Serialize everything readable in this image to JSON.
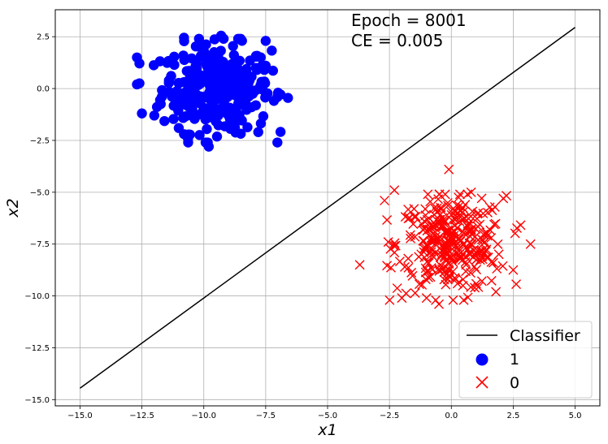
{
  "chart_data": {
    "type": "scatter",
    "title": "",
    "xlabel": "x1",
    "ylabel": "x2",
    "xlim": [
      -16.0,
      6.0
    ],
    "ylim": [
      -15.3,
      3.8
    ],
    "grid": true,
    "legend_position": "bottom-right",
    "xticks": [
      -15.0,
      -12.5,
      -10.0,
      -7.5,
      -5.0,
      -2.5,
      0.0,
      2.5,
      5.0
    ],
    "xtick_labels": [
      "-15.0",
      "-12.5",
      "-10.0",
      "-7.5",
      "-5.0",
      "-2.5",
      "0.0",
      "2.5",
      "5.0"
    ],
    "yticks": [
      2.5,
      0.0,
      -2.5,
      -5.0,
      -7.5,
      -10.0,
      -12.5,
      -15.0
    ],
    "ytick_labels": [
      "2.5",
      "0.0",
      "-2.5",
      "-5.0",
      "-7.5",
      "-10.0",
      "-12.5",
      "-15.0"
    ],
    "annotations": [
      {
        "text": "Epoch = 8001"
      },
      {
        "text": "CE = 0.005"
      }
    ],
    "series": [
      {
        "name": "Classifier",
        "kind": "line",
        "color": "#000000",
        "points": [
          [
            -15.0,
            -14.45
          ],
          [
            5.0,
            2.95
          ]
        ]
      },
      {
        "name": "1",
        "kind": "scatter",
        "marker": "circle",
        "color": "#0000ff",
        "center": [
          -9.5,
          0.0
        ],
        "spread": [
          1.1,
          1.05
        ],
        "count": 320,
        "extreme_points": [
          [
            -12.7,
            1.5
          ],
          [
            -12.7,
            0.2
          ],
          [
            -12.5,
            -1.2
          ],
          [
            -10.8,
            2.45
          ],
          [
            -9.3,
            2.55
          ],
          [
            -7.5,
            2.3
          ],
          [
            -7.5,
            1.1
          ],
          [
            -7.0,
            -0.2
          ],
          [
            -6.6,
            -0.45
          ],
          [
            -7.8,
            -2.1
          ],
          [
            -9.8,
            -2.8
          ],
          [
            -10.8,
            -2.2
          ],
          [
            -12.0,
            -1.3
          ]
        ]
      },
      {
        "name": "0",
        "kind": "scatter",
        "marker": "x",
        "color": "#ff0000",
        "center": [
          0.0,
          -7.5
        ],
        "spread": [
          1.1,
          1.15
        ],
        "count": 320,
        "extreme_points": [
          [
            -3.7,
            -8.5
          ],
          [
            -2.7,
            -5.4
          ],
          [
            -2.3,
            -4.9
          ],
          [
            -0.1,
            -3.9
          ],
          [
            0.8,
            -5.0
          ],
          [
            2.1,
            -5.3
          ],
          [
            3.2,
            -7.5
          ],
          [
            2.5,
            -8.75
          ],
          [
            1.8,
            -9.8
          ],
          [
            0.5,
            -10.2
          ],
          [
            -0.5,
            -10.4
          ],
          [
            -2.0,
            -10.1
          ],
          [
            -1.0,
            -10.1
          ]
        ]
      }
    ]
  }
}
